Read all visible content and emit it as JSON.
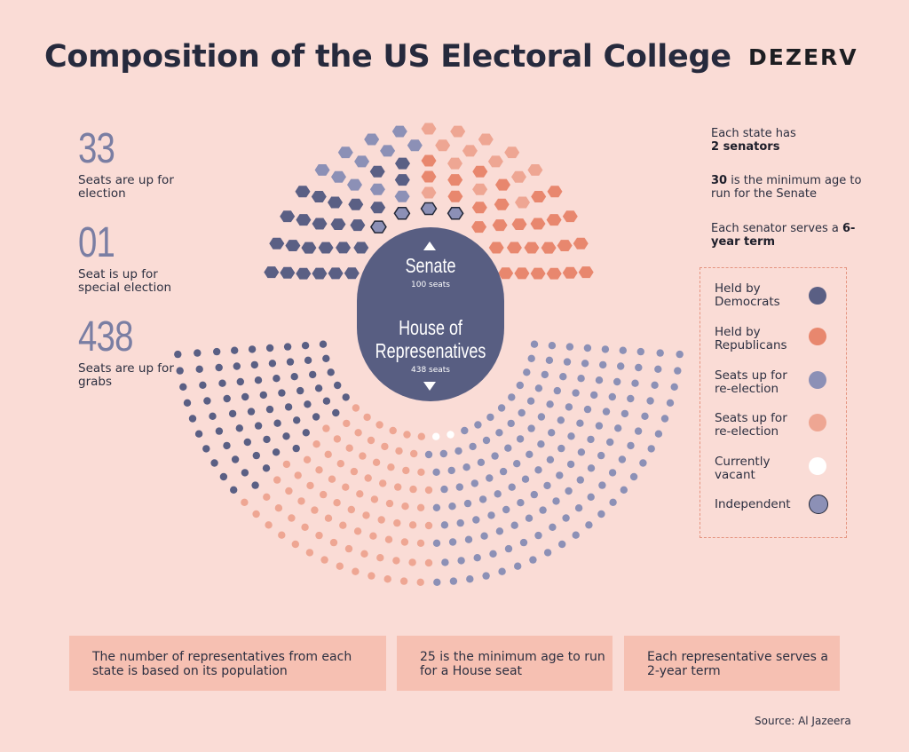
{
  "title": "Composition of the US Electoral College",
  "brand": "DEZERV",
  "stats": [
    {
      "number": "33",
      "label": "Seats are up for election"
    },
    {
      "number": "01",
      "label": "Seat is up for special election"
    },
    {
      "number": "438",
      "label": "Seats are up for grabs"
    }
  ],
  "senate_facts": {
    "f1_a": "Each state has",
    "f1_b": "2 senators",
    "f2_a": "30",
    "f2_b": " is the minimum age to run for the Senate",
    "f3_a": "Each senator serves a ",
    "f3_b": "6-year term"
  },
  "legend": [
    {
      "label": "Held by Democrats",
      "color": "#5a5f84"
    },
    {
      "label": "Held by Republicans",
      "color": "#e8876e"
    },
    {
      "label": "Seats up for re-election",
      "color": "#8c90b6"
    },
    {
      "label": "Seats up for re-election",
      "color": "#eea693"
    },
    {
      "label": "Currently vacant",
      "color": "#ffffff"
    },
    {
      "label": "Independent",
      "color": "#8c90b6",
      "stroke": "#232838"
    }
  ],
  "center": {
    "senate_title": "Senate",
    "senate_sub": "100 seats",
    "house_title1": "House of",
    "house_title2": "Represenatives",
    "house_sub": "438 seats"
  },
  "house_notes": [
    "The number of representatives from each state is based on its population",
    "25 is the minimum age to run for a House seat",
    "Each representative serves a 2-year term"
  ],
  "source": "Source: Al Jazeera",
  "colors": {
    "dem": "#5a5f84",
    "rep": "#e8876e",
    "dem_up": "#8c90b6",
    "rep_up": "#eea693",
    "vacant": "#ffffff",
    "ind_stroke": "#232838"
  },
  "chart_data": {
    "type": "parliament",
    "senate": {
      "total": 100,
      "independent_seats": 4
    },
    "house": {
      "total": 438,
      "vacant_seats": 3
    }
  }
}
